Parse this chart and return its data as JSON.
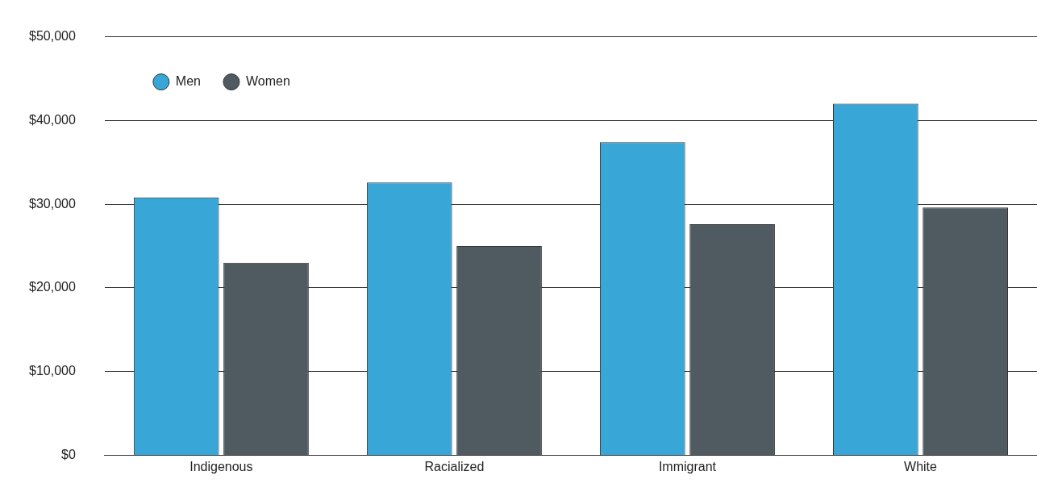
{
  "chart_data": {
    "type": "bar",
    "categories": [
      "Indigenous",
      "Racialized",
      "Immigrant",
      "White"
    ],
    "series": [
      {
        "name": "Men",
        "color": "#38a6d6",
        "values": [
          30800,
          32600,
          37400,
          42000
        ]
      },
      {
        "name": "Women",
        "color": "#505a61",
        "values": [
          23000,
          25000,
          27600,
          29600
        ]
      }
    ],
    "ylim": [
      0,
      50000
    ],
    "yticks": [
      {
        "value": 0,
        "label": "$0"
      },
      {
        "value": 10000,
        "label": "$10,000"
      },
      {
        "value": 20000,
        "label": "$20,000"
      },
      {
        "value": 30000,
        "label": "$30,000"
      },
      {
        "value": 40000,
        "label": "$40,000"
      },
      {
        "value": 50000,
        "label": "$50,000"
      }
    ],
    "grid": "y",
    "legend": "top left"
  }
}
